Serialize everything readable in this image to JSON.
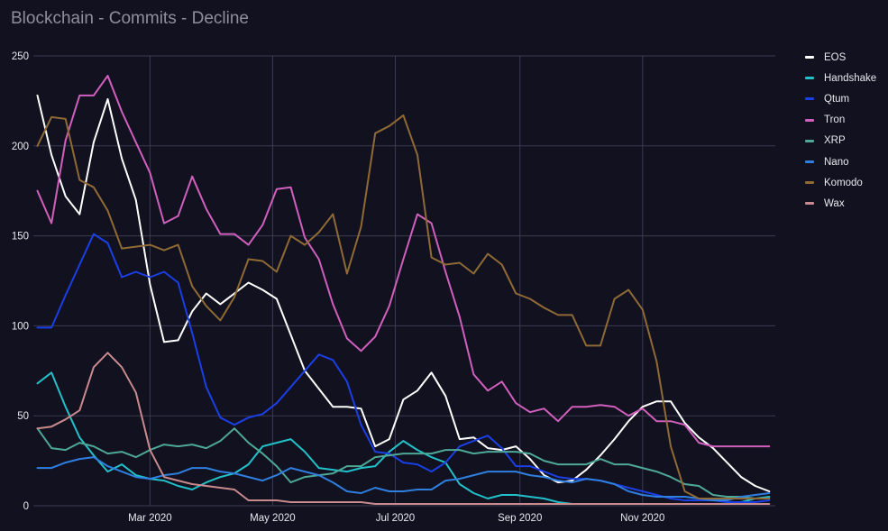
{
  "chart_data": {
    "type": "line",
    "title": "Blockchain - Commits - Decline",
    "x": [
      "2020-01-05",
      "2020-01-12",
      "2020-01-19",
      "2020-01-26",
      "2020-02-02",
      "2020-02-09",
      "2020-02-16",
      "2020-02-23",
      "2020-03-01",
      "2020-03-08",
      "2020-03-15",
      "2020-03-22",
      "2020-03-29",
      "2020-04-05",
      "2020-04-12",
      "2020-04-19",
      "2020-04-26",
      "2020-05-03",
      "2020-05-10",
      "2020-05-17",
      "2020-05-24",
      "2020-05-31",
      "2020-06-07",
      "2020-06-14",
      "2020-06-21",
      "2020-06-28",
      "2020-07-05",
      "2020-07-12",
      "2020-07-19",
      "2020-07-26",
      "2020-08-02",
      "2020-08-09",
      "2020-08-16",
      "2020-08-23",
      "2020-08-30",
      "2020-09-06",
      "2020-09-13",
      "2020-09-20",
      "2020-09-27",
      "2020-10-04",
      "2020-10-11",
      "2020-10-18",
      "2020-10-25",
      "2020-11-01",
      "2020-11-08",
      "2020-11-15",
      "2020-11-22",
      "2020-11-29",
      "2020-12-06",
      "2020-12-13",
      "2020-12-20",
      "2020-12-27",
      "2021-01-03"
    ],
    "x_ticks": [
      "Mar 2020",
      "May 2020",
      "Jul 2020",
      "Sep 2020",
      "Nov 2020"
    ],
    "x_tick_dates": [
      "2020-03-01",
      "2020-05-01",
      "2020-07-01",
      "2020-09-01",
      "2020-11-01"
    ],
    "xlim": [
      "2020-01-03",
      "2021-01-06"
    ],
    "ylim": [
      0,
      250
    ],
    "y_ticks": [
      0,
      50,
      100,
      150,
      200,
      250
    ],
    "grid": true,
    "legend_position": "right",
    "series": [
      {
        "name": "EOS",
        "color": "#ffffff",
        "values": [
          228,
          195,
          172,
          162,
          202,
          226,
          193,
          170,
          123,
          91,
          92,
          108,
          118,
          112,
          118,
          124,
          120,
          115,
          95,
          75,
          65,
          55,
          55,
          54,
          33,
          37,
          59,
          64,
          74,
          61,
          37,
          38,
          32,
          31,
          33,
          26,
          17,
          13,
          14,
          20,
          28,
          37,
          47,
          55,
          58,
          58,
          46,
          38,
          32,
          24,
          16,
          11,
          8
        ]
      },
      {
        "name": "Handshake",
        "color": "#22c1c9",
        "values": [
          68,
          74,
          55,
          38,
          28,
          19,
          23,
          17,
          15,
          14,
          11,
          9,
          13,
          16,
          18,
          23,
          33,
          35,
          37,
          30,
          21,
          20,
          19,
          21,
          22,
          30,
          36,
          31,
          27,
          24,
          12,
          7,
          4,
          6,
          6,
          5,
          4,
          2,
          1,
          1,
          1,
          1,
          1,
          1,
          1,
          1,
          1,
          1,
          1,
          1,
          2,
          4,
          5
        ]
      },
      {
        "name": "Qtum",
        "color": "#1b3fe6",
        "values": [
          99,
          99,
          117,
          134,
          151,
          146,
          127,
          130,
          127,
          130,
          124,
          96,
          66,
          49,
          45,
          49,
          51,
          57,
          66,
          75,
          84,
          81,
          69,
          45,
          30,
          29,
          24,
          23,
          19,
          24,
          33,
          36,
          39,
          32,
          22,
          22,
          19,
          16,
          15,
          15,
          14,
          12,
          10,
          8,
          6,
          4,
          3,
          3,
          3,
          2,
          2,
          2,
          3
        ]
      },
      {
        "name": "Tron",
        "color": "#d15fbd",
        "values": [
          175,
          157,
          203,
          228,
          228,
          239,
          219,
          202,
          185,
          157,
          161,
          183,
          165,
          151,
          151,
          145,
          156,
          176,
          177,
          149,
          137,
          112,
          93,
          86,
          94,
          111,
          137,
          162,
          157,
          130,
          105,
          73,
          64,
          69,
          57,
          52,
          54,
          47,
          55,
          55,
          56,
          55,
          50,
          54,
          47,
          47,
          45,
          35,
          33,
          33,
          33,
          33,
          33
        ]
      },
      {
        "name": "XRP",
        "color": "#4ea896",
        "values": [
          43,
          32,
          31,
          35,
          33,
          29,
          30,
          27,
          31,
          34,
          33,
          34,
          32,
          36,
          43,
          35,
          29,
          22,
          13,
          16,
          17,
          18,
          22,
          22,
          27,
          28,
          29,
          29,
          29,
          31,
          31,
          29,
          30,
          30,
          30,
          29,
          25,
          23,
          23,
          23,
          26,
          23,
          23,
          21,
          19,
          16,
          12,
          11,
          6,
          5,
          5,
          4,
          4
        ]
      },
      {
        "name": "Nano",
        "color": "#2f7fe0",
        "values": [
          21,
          21,
          24,
          26,
          27,
          22,
          19,
          16,
          15,
          17,
          18,
          21,
          21,
          19,
          18,
          16,
          14,
          17,
          21,
          19,
          17,
          13,
          8,
          7,
          10,
          8,
          8,
          9,
          9,
          14,
          15,
          17,
          19,
          19,
          19,
          17,
          16,
          14,
          13,
          15,
          14,
          12,
          8,
          6,
          5,
          5,
          5,
          4,
          3,
          3,
          5,
          6,
          7
        ]
      },
      {
        "name": "Komodo",
        "color": "#8f6a35",
        "values": [
          200,
          216,
          215,
          181,
          177,
          164,
          143,
          144,
          145,
          142,
          145,
          122,
          111,
          103,
          116,
          137,
          136,
          130,
          150,
          145,
          152,
          162,
          129,
          155,
          207,
          211,
          217,
          195,
          138,
          134,
          135,
          129,
          140,
          134,
          118,
          115,
          110,
          106,
          106,
          89,
          89,
          115,
          120,
          109,
          80,
          33,
          8,
          4,
          4,
          4,
          4,
          4,
          4
        ]
      },
      {
        "name": "Wax",
        "color": "#c98a8e",
        "values": [
          43,
          44,
          48,
          53,
          77,
          85,
          77,
          63,
          31,
          16,
          14,
          12,
          11,
          10,
          9,
          3,
          3,
          3,
          2,
          2,
          2,
          2,
          2,
          2,
          1,
          1,
          1,
          1,
          1,
          1,
          1,
          1,
          1,
          1,
          1,
          1,
          1,
          1,
          1,
          1,
          1,
          1,
          1,
          1,
          1,
          1,
          1,
          1,
          1,
          1,
          1,
          1,
          1
        ]
      }
    ]
  }
}
